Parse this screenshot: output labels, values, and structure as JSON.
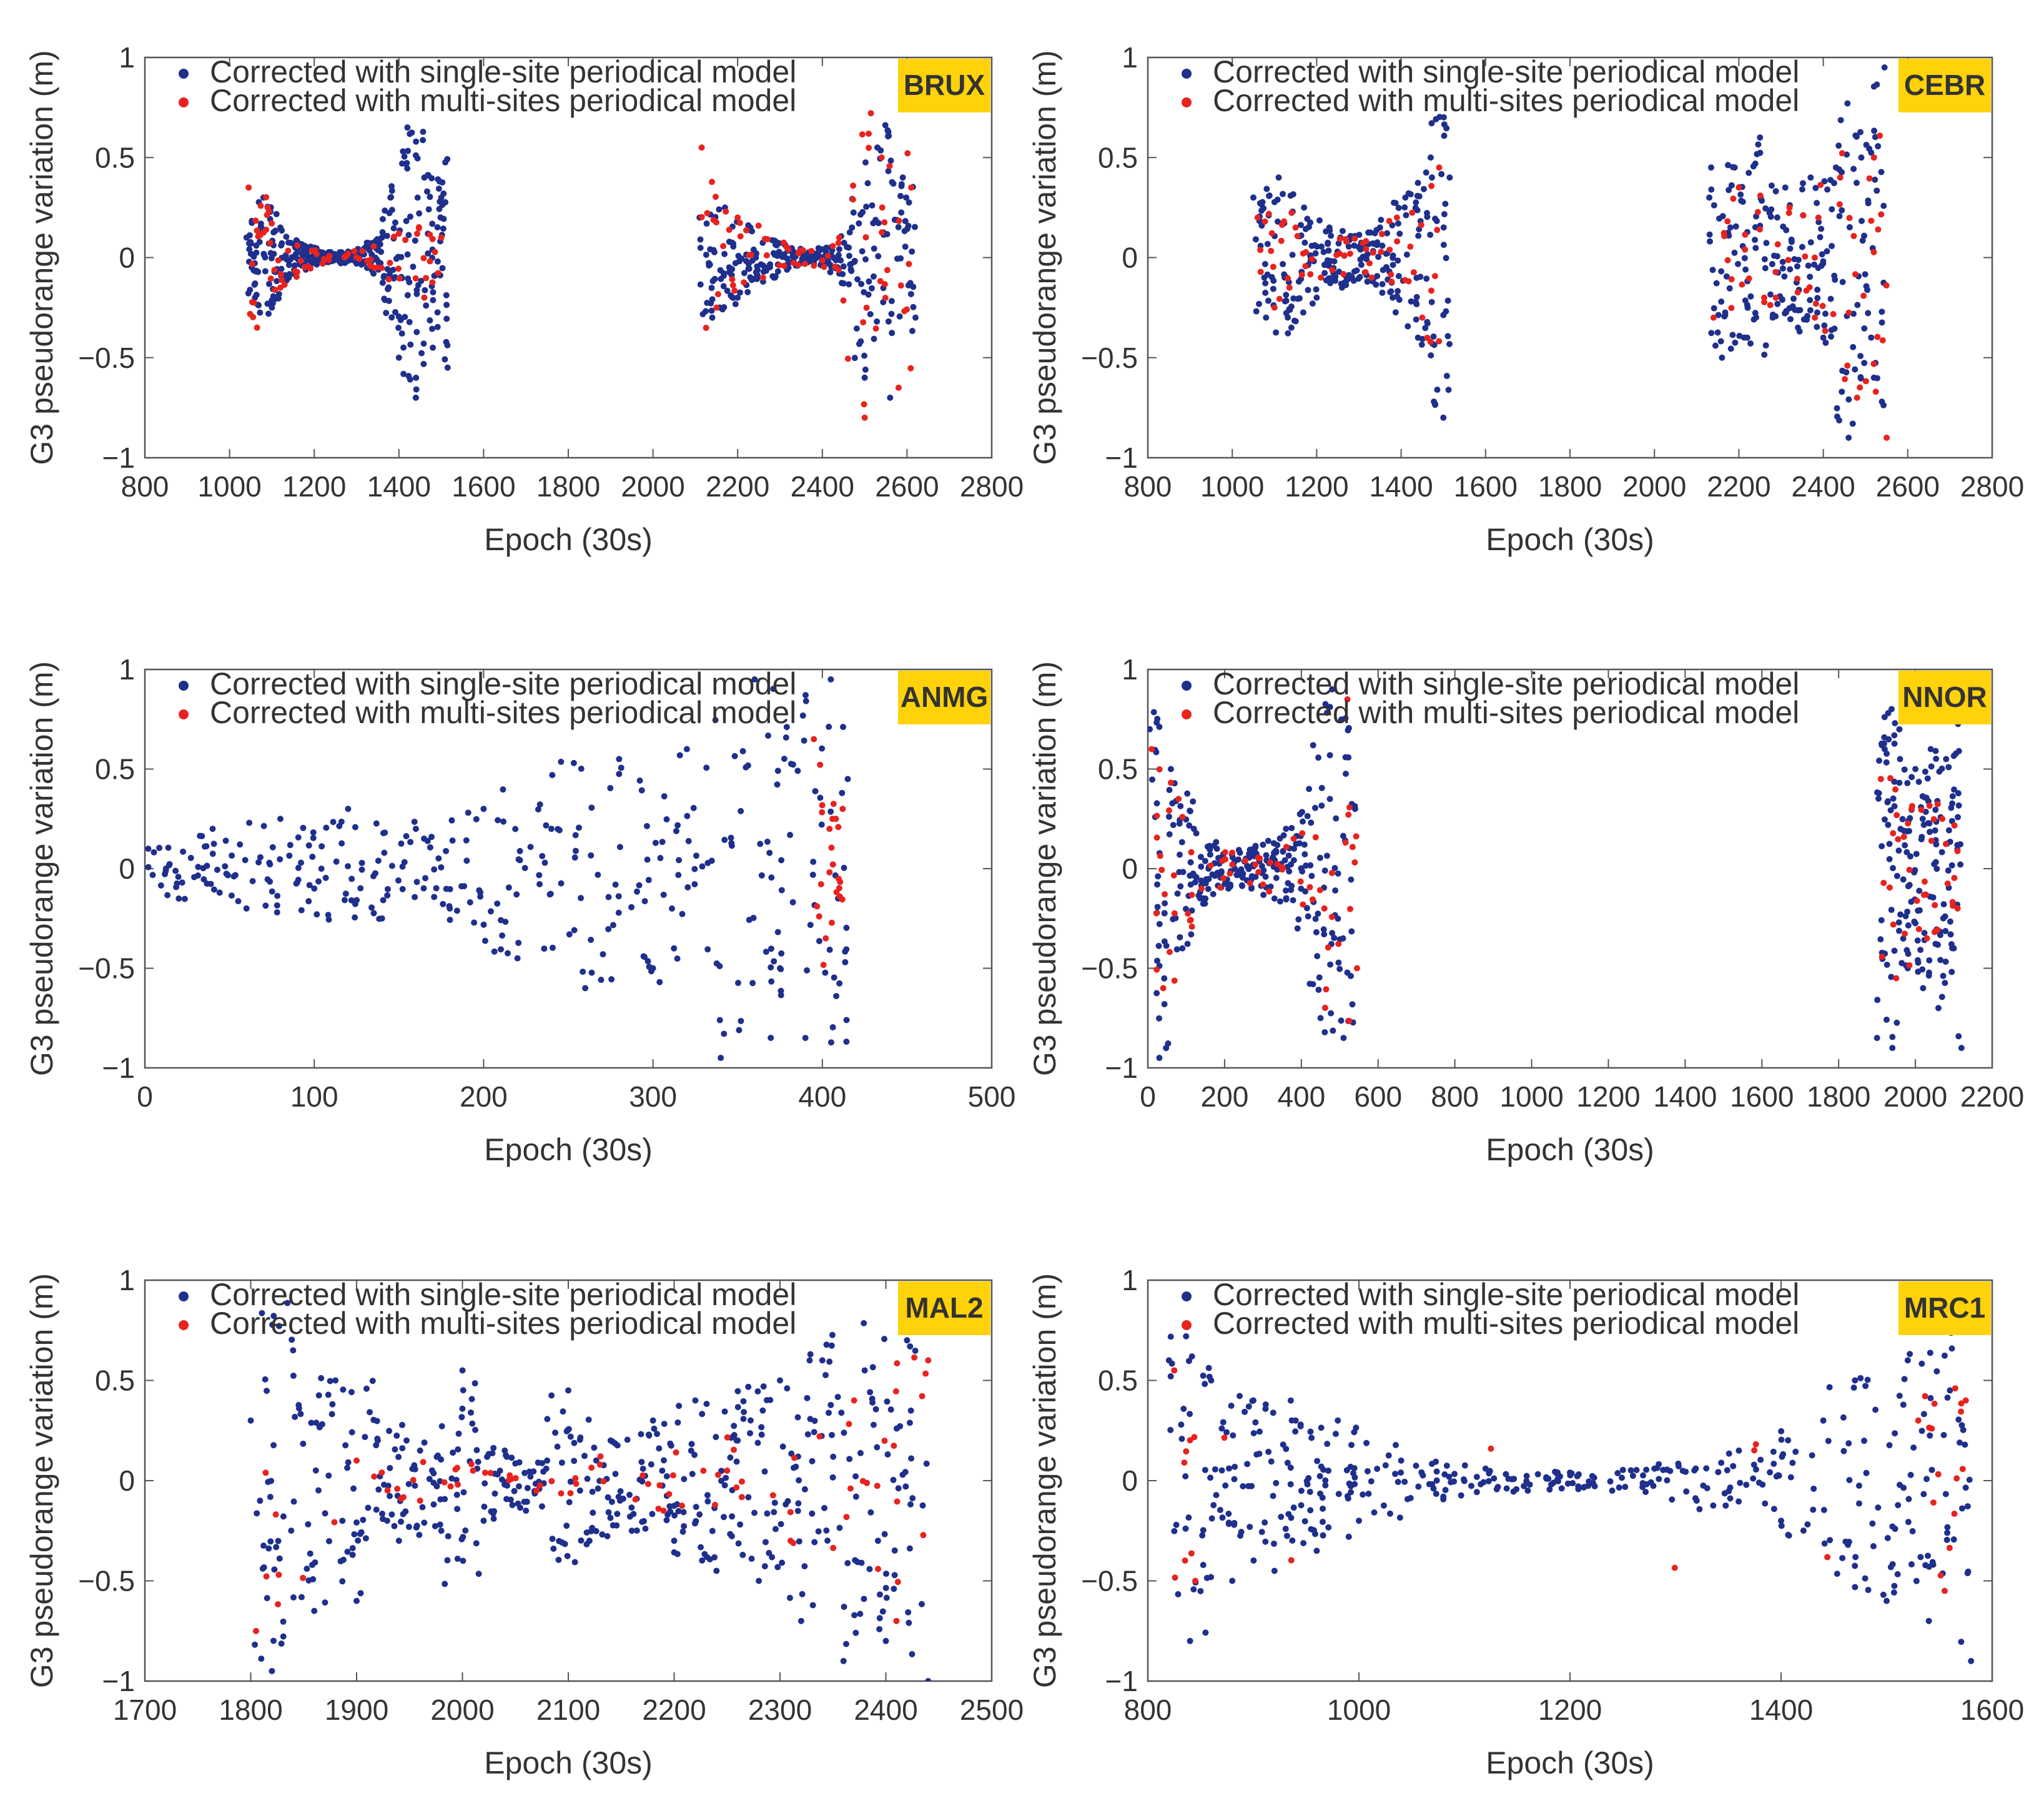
{
  "figure": {
    "legend": {
      "single": "Corrected with single-site periodical model",
      "multi": "Corrected with multi-sites periodical model"
    },
    "colors": {
      "single": "#1f2f8c",
      "multi": "#e8231e",
      "badge": "#ffd20a",
      "axis": "#555555"
    }
  },
  "chart_data": [
    {
      "type": "scatter",
      "station": "BRUX",
      "xlabel": "Epoch (30s)",
      "ylabel": "G3 pseudorange variation (m)",
      "xlim": [
        800,
        2800
      ],
      "ylim": [
        -1,
        1
      ],
      "xticks": [
        800,
        1000,
        1200,
        1400,
        1600,
        1800,
        2000,
        2200,
        2400,
        2600,
        2800
      ],
      "yticks": [
        -1,
        -0.5,
        0,
        0.5,
        1
      ],
      "ytick_labels": [
        "−1",
        "−0.5",
        "0",
        "0.5",
        "1"
      ],
      "legend_position": "top-left",
      "series": [
        {
          "name": "Corrected with single-site periodical model",
          "color": "#1f2f8c",
          "segments": [
            {
              "x": [
                1040,
                1060,
                1080,
                1100,
                1120,
                1140,
                1160,
                1180,
                1200,
                1220,
                1240,
                1260,
                1280,
                1300,
                1320,
                1340,
                1360,
                1380,
                1400,
                1420,
                1440,
                1460,
                1480,
                1500,
                1515
              ],
              "y": [
                0.1,
                -0.2,
                0.3,
                -0.25,
                0.15,
                -0.1,
                0.08,
                -0.06,
                0.05,
                -0.03,
                0.02,
                -0.02,
                0.03,
                -0.03,
                0.05,
                -0.08,
                0.1,
                0.3,
                -0.5,
                0.65,
                -0.7,
                0.4,
                -0.45,
                0.3,
                -0.55
              ]
            },
            {
              "x": [
                2110,
                2140,
                2170,
                2200,
                2230,
                2260,
                2290,
                2320,
                2350,
                2380,
                2410,
                2440,
                2470,
                2500,
                2530,
                2560,
                2590,
                2620
              ],
              "y": [
                0.2,
                -0.3,
                0.25,
                -0.2,
                0.15,
                -0.12,
                0.08,
                -0.05,
                0.03,
                -0.03,
                0.05,
                -0.08,
                0.15,
                -0.6,
                0.55,
                -0.7,
                0.4,
                -0.3
              ]
            }
          ]
        },
        {
          "name": "Corrected with multi-sites periodical model",
          "color": "#e8231e",
          "segments": [
            {
              "x": [
                1045,
                1065,
                1090,
                1120,
                1160,
                1220,
                1280,
                1340,
                1400,
                1460,
                1500
              ],
              "y": [
                0.35,
                -0.35,
                0.25,
                -0.15,
                0.06,
                -0.03,
                0.02,
                -0.05,
                0.12,
                -0.2,
                0.1
              ]
            },
            {
              "x": [
                2115,
                2150,
                2200,
                2260,
                2320,
                2380,
                2440,
                2500,
                2540,
                2580,
                2610
              ],
              "y": [
                0.55,
                -0.25,
                0.2,
                -0.1,
                0.04,
                -0.04,
                0.1,
                -0.8,
                0.5,
                -0.65,
                0.35
              ]
            }
          ]
        }
      ]
    },
    {
      "type": "scatter",
      "station": "CEBR",
      "xlabel": "Epoch (30s)",
      "ylabel": "G3 pseudorange variation (m)",
      "xlim": [
        800,
        2800
      ],
      "ylim": [
        -1,
        1
      ],
      "xticks": [
        800,
        1000,
        1200,
        1400,
        1600,
        1800,
        2000,
        2200,
        2400,
        2600,
        2800
      ],
      "yticks": [
        -1,
        -0.5,
        0,
        0.5,
        1
      ],
      "ytick_labels": [
        "−1",
        "−0.5",
        "0",
        "0.5",
        "1"
      ],
      "legend_position": "top-left",
      "series": [
        {
          "name": "Corrected with single-site periodical model",
          "color": "#1f2f8c",
          "segments": [
            {
              "x": [
                1050,
                1080,
                1110,
                1140,
                1170,
                1200,
                1230,
                1260,
                1290,
                1320,
                1350,
                1380,
                1410,
                1440,
                1470,
                1500,
                1515
              ],
              "y": [
                0.3,
                -0.3,
                0.4,
                -0.35,
                0.25,
                -0.2,
                0.15,
                -0.15,
                0.1,
                -0.12,
                0.15,
                -0.2,
                0.3,
                -0.4,
                0.5,
                -0.8,
                0.4
              ]
            },
            {
              "x": [
                2130,
                2160,
                2190,
                2220,
                2250,
                2280,
                2310,
                2340,
                2370,
                2400,
                2430,
                2460,
                2490,
                2520,
                2545
              ],
              "y": [
                0.3,
                -0.5,
                0.45,
                -0.4,
                0.6,
                -0.3,
                0.35,
                -0.35,
                0.4,
                -0.4,
                0.45,
                -0.9,
                0.5,
                -0.6,
                0.95
              ]
            }
          ]
        },
        {
          "name": "Corrected with multi-sites periodical model",
          "color": "#e8231e",
          "segments": [
            {
              "x": [
                1060,
                1100,
                1150,
                1210,
                1270,
                1330,
                1390,
                1450,
                1490
              ],
              "y": [
                0.2,
                -0.25,
                0.15,
                -0.1,
                0.08,
                -0.1,
                0.2,
                -0.3,
                0.45
              ]
            },
            {
              "x": [
                2140,
                2200,
                2260,
                2320,
                2380,
                2440,
                2480,
                2520,
                2550
              ],
              "y": [
                -0.3,
                0.35,
                -0.2,
                0.25,
                -0.3,
                0.4,
                -0.7,
                0.5,
                -0.9
              ]
            }
          ]
        }
      ]
    },
    {
      "type": "scatter",
      "station": "ANMG",
      "xlabel": "Epoch (30s)",
      "ylabel": "G3 pseudorange variation (m)",
      "xlim": [
        0,
        500
      ],
      "ylim": [
        -1,
        1
      ],
      "xticks": [
        0,
        100,
        200,
        300,
        400,
        500
      ],
      "yticks": [
        -1,
        -0.5,
        0,
        0.5,
        1
      ],
      "ytick_labels": [
        "−1",
        "−0.5",
        "0",
        "0.5",
        "1"
      ],
      "legend_position": "top-left",
      "series": [
        {
          "name": "Corrected with single-site periodical model",
          "color": "#1f2f8c",
          "segments": [
            {
              "x": [
                2,
                20,
                40,
                60,
                80,
                100,
                120,
                140,
                160,
                180,
                200,
                220,
                240,
                260,
                280,
                300,
                320,
                340,
                360,
                375,
                390,
                405,
                415
              ],
              "y": [
                0.1,
                -0.15,
                0.2,
                -0.2,
                0.25,
                -0.1,
                0.3,
                -0.25,
                0.2,
                -0.2,
                0.3,
                -0.45,
                0.2,
                -0.6,
                0.55,
                -0.5,
                0.6,
                -0.95,
                0.95,
                -0.5,
                -0.85,
                0.95,
                0.45
              ]
            }
          ]
        },
        {
          "name": "Corrected with multi-sites periodical model",
          "color": "#e8231e",
          "segments": [
            {
              "x": [
                395,
                402,
                408,
                412
              ],
              "y": [
                0.65,
                -0.35,
                0.25,
                0.3
              ]
            }
          ]
        }
      ]
    },
    {
      "type": "scatter",
      "station": "NNOR",
      "xlabel": "Epoch (30s)",
      "ylabel": "G3 pseudorange variation (m)",
      "xlim": [
        0,
        2200
      ],
      "ylim": [
        -1,
        1
      ],
      "xticks": [
        0,
        200,
        400,
        600,
        800,
        1000,
        1200,
        1400,
        1600,
        1800,
        2000,
        2200
      ],
      "yticks": [
        -1,
        -0.5,
        0,
        0.5,
        1
      ],
      "ytick_labels": [
        "−1",
        "−0.5",
        "0",
        "0.5",
        "1"
      ],
      "legend_position": "top-left",
      "series": [
        {
          "name": "Corrected with single-site periodical model",
          "color": "#1f2f8c",
          "segments": [
            {
              "x": [
                5,
                30,
                60,
                90,
                120,
                150,
                180,
                210,
                240,
                270,
                300,
                330,
                360,
                390,
                420,
                450,
                480,
                510,
                540
              ],
              "y": [
                0.7,
                -0.95,
                0.5,
                -0.4,
                0.2,
                -0.15,
                0.1,
                -0.1,
                0.08,
                -0.1,
                0.12,
                -0.15,
                0.2,
                -0.3,
                0.4,
                -0.75,
                0.9,
                -0.85,
                0.3
              ]
            },
            {
              "x": [
                1900,
                1920,
                1940,
                1960,
                1980,
                2000,
                2020,
                2040,
                2060,
                2080,
                2100,
                2120
              ],
              "y": [
                -0.85,
                0.6,
                -0.9,
                0.55,
                -0.5,
                0.5,
                -0.6,
                0.6,
                -0.7,
                0.55,
                -0.4,
                -0.9
              ]
            }
          ]
        },
        {
          "name": "Corrected with multi-sites periodical model",
          "color": "#e8231e",
          "segments": [
            {
              "x": [
                10,
                40,
                80,
                140,
                220,
                300,
                380,
                460,
                520,
                545
              ],
              "y": [
                0.6,
                -0.6,
                0.35,
                -0.1,
                0.08,
                -0.08,
                0.15,
                -0.2,
                0.85,
                -0.5
              ]
            },
            {
              "x": [
                1910,
                1950,
                1990,
                2030,
                2070,
                2110
              ],
              "y": [
                0.45,
                -0.55,
                0.3,
                -0.35,
                0.25,
                -0.2
              ]
            }
          ]
        }
      ]
    },
    {
      "type": "scatter",
      "station": "MAL2",
      "xlabel": "Epoch (30s)",
      "ylabel": "G3 pseudorange variation (m)",
      "xlim": [
        1700,
        2500
      ],
      "ylim": [
        -1,
        1
      ],
      "xticks": [
        1700,
        1800,
        1900,
        2000,
        2100,
        2200,
        2300,
        2400,
        2500
      ],
      "yticks": [
        -1,
        -0.5,
        0,
        0.5,
        1
      ],
      "ytick_labels": [
        "−1",
        "−0.5",
        "0",
        "0.5",
        "1"
      ],
      "legend_position": "top-left",
      "series": [
        {
          "name": "Corrected with single-site periodical model",
          "color": "#1f2f8c",
          "segments": [
            {
              "x": [
                1800,
                1820,
                1840,
                1860,
                1880,
                1900,
                1920,
                1940,
                1960,
                1980,
                2000,
                2020,
                2040,
                2060,
                2080,
                2100,
                2120,
                2140,
                2160,
                2180,
                2200,
                2220,
                2240,
                2260,
                2280,
                2300,
                2320,
                2340,
                2360,
                2380,
                2400,
                2420,
                2440
              ],
              "y": [
                0.3,
                -0.95,
                0.65,
                -0.65,
                0.5,
                -0.6,
                0.2,
                -0.3,
                0.15,
                -0.25,
                0.55,
                -0.2,
                0.15,
                -0.15,
                0.1,
                0.45,
                -0.3,
                0.2,
                -0.25,
                0.3,
                -0.3,
                0.4,
                -0.45,
                0.2,
                -0.5,
                0.5,
                -0.7,
                0.6,
                -0.9,
                0.55,
                -0.8,
                0.7,
                -1
              ]
            }
          ]
        },
        {
          "name": "Corrected with multi-sites periodical model",
          "color": "#e8231e",
          "segments": [
            {
              "x": [
                1805,
                1900,
                1960,
                2010,
                2070,
                2130,
                2190,
                2250,
                2310,
                2370,
                2410,
                2440
              ],
              "y": [
                -0.75,
                0.1,
                -0.1,
                0.05,
                -0.05,
                0.08,
                -0.15,
                0.05,
                -0.3,
                0.4,
                -0.7,
                0.6
              ]
            }
          ]
        }
      ]
    },
    {
      "type": "scatter",
      "station": "MRC1",
      "xlabel": "Epoch (30s)",
      "ylabel": "G3 pseudorange variation (m)",
      "xlim": [
        800,
        1600
      ],
      "ylim": [
        -1,
        1
      ],
      "xticks": [
        800,
        1000,
        1200,
        1400,
        1600
      ],
      "yticks": [
        -1,
        -0.5,
        0,
        0.5,
        1
      ],
      "ytick_labels": [
        "−1",
        "−0.5",
        "0",
        "0.5",
        "1"
      ],
      "legend_position": "top-left",
      "series": [
        {
          "name": "Corrected with single-site periodical model",
          "color": "#1f2f8c",
          "segments": [
            {
              "x": [
                820,
                840,
                860,
                880,
                900,
                920,
                940,
                960,
                980,
                1000,
                1040,
                1080,
                1120,
                1160,
                1200,
                1240,
                1280,
                1320,
                1360,
                1400,
                1440,
                1470,
                1500,
                1520,
                1540,
                1560,
                1580
              ],
              "y": [
                0.6,
                -0.8,
                0.5,
                -0.5,
                0.4,
                -0.45,
                0.3,
                -0.35,
                0.3,
                -0.2,
                0.1,
                -0.08,
                0.06,
                -0.05,
                0.04,
                -0.05,
                0.06,
                -0.1,
                0.15,
                -0.2,
                0.3,
                0.5,
                -0.6,
                0.6,
                -0.7,
                0.45,
                -0.9
              ]
            }
          ]
        },
        {
          "name": "Corrected with multi-sites periodical model",
          "color": "#e8231e",
          "segments": [
            {
              "x": [
                825,
                845,
                1530,
                1555,
                1575
              ],
              "y": [
                0.55,
                -0.5,
                0.3,
                -0.55,
                0.4
              ]
            }
          ]
        }
      ]
    }
  ]
}
